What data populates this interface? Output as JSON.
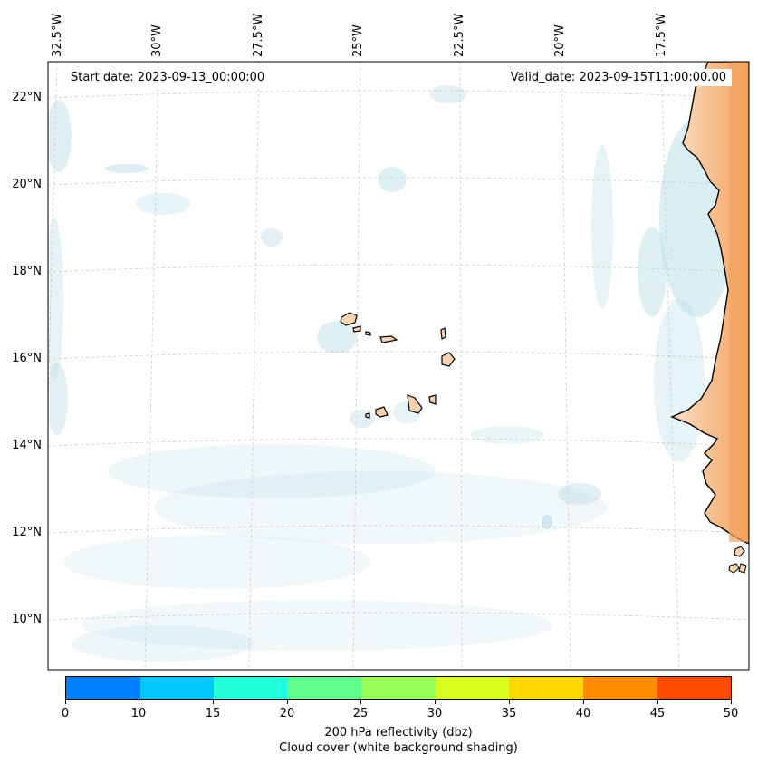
{
  "map": {
    "start_date": "Start date: 2023-09-13_00:00:00",
    "valid_date": "Valid_date: 2023-09-15T11:00:00.00",
    "lon_labels": [
      "32.5°W",
      "30°W",
      "27.5°W",
      "25°W",
      "22.5°W",
      "20°W",
      "17.5°W"
    ],
    "lat_labels": [
      "22°N",
      "20°N",
      "18°N",
      "16°N",
      "14°N",
      "12°N",
      "10°N"
    ],
    "features": [
      "cape-verde-islands",
      "west-africa-coast",
      "cloud-cover-shading"
    ]
  },
  "colorbar": {
    "ticks": [
      "0",
      "10",
      "15",
      "20",
      "25",
      "30",
      "35",
      "40",
      "45",
      "50"
    ],
    "colors": [
      "#0080ff",
      "#00c8ff",
      "#20ffd8",
      "#60ff90",
      "#98ff58",
      "#d8ff20",
      "#ffd800",
      "#ff8c00",
      "#ff4c00"
    ],
    "label": "200 hPa reflectivity (dbz)",
    "sublabel": "Cloud cover (white background shading)"
  },
  "colors": {
    "land_coast": "#f4a460",
    "land_light": "#f9d3b0",
    "cloud": "#b8dde8"
  }
}
